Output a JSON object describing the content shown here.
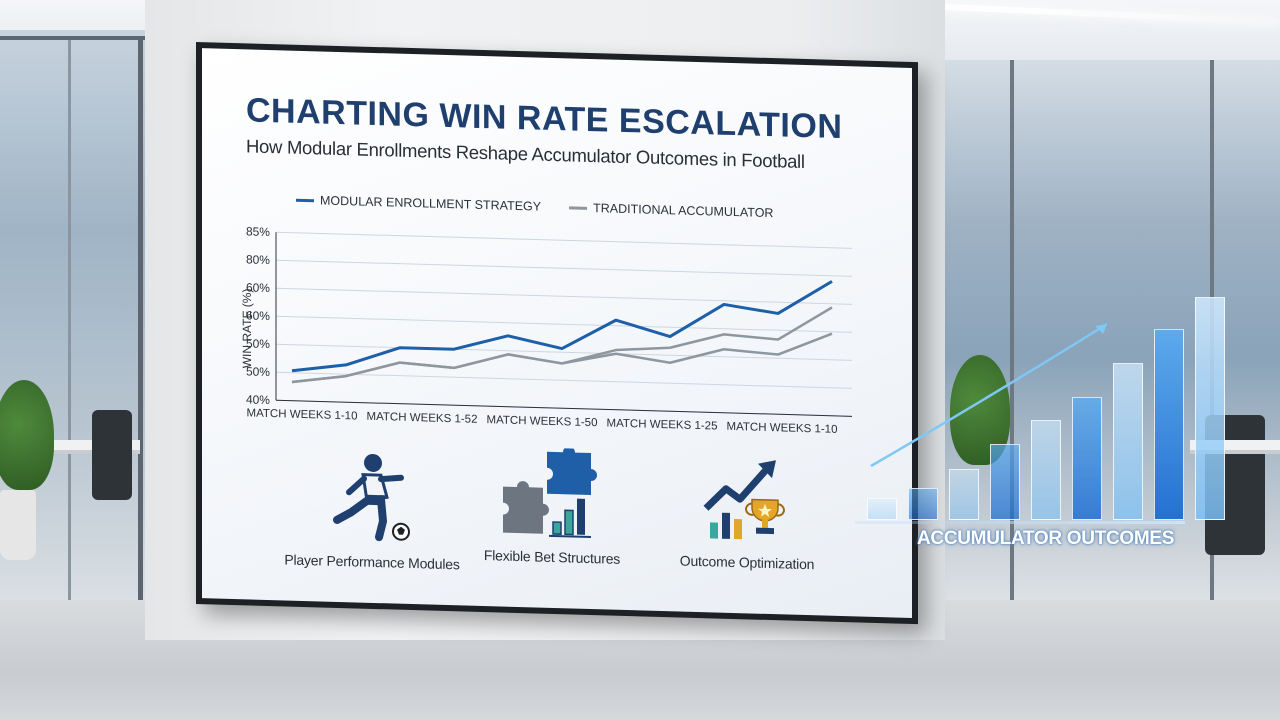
{
  "screen": {
    "title": "CHARTING WIN RATE ESCALATION",
    "subtitle": "How Modular Enrollments Reshape Accumulator Outcomes in Football"
  },
  "chart_data": {
    "type": "line",
    "title": "CHARTING WIN RATE ESCALATION",
    "subtitle": "How Modular Enrollments Reshape Accumulator Outcomes in Football",
    "ylabel": "WIN RATE (%)",
    "xlabel": "",
    "y_ticks": [
      "85%",
      "80%",
      "60%",
      "60%",
      "50%",
      "50%",
      "40%"
    ],
    "x_ticks": [
      "MATCH WEEKS 1-10",
      "MATCH WEEKS 1-52",
      "MATCH WEEKS 1-50",
      "MATCH WEEKS 1-25",
      "MATCH WEEKS 1-10"
    ],
    "ylim": [
      40,
      85
    ],
    "grid": true,
    "legend_position": "top",
    "series": [
      {
        "name": "MODULAR ENROLLMENT STRATEGY",
        "color": "#1d5fa8",
        "values": [
          48,
          50,
          55,
          55,
          59,
          56,
          64,
          60,
          69,
          67,
          76
        ]
      },
      {
        "name": "TRADITIONAL ACCUMULATOR",
        "color": "#8e979f",
        "values": [
          45,
          47,
          51,
          50,
          54,
          52,
          56,
          57,
          61,
          60,
          69
        ]
      },
      {
        "name": "",
        "color": "#8e979f",
        "values": [
          45,
          47,
          51,
          50,
          54,
          52,
          55,
          53,
          57,
          56,
          62
        ]
      }
    ]
  },
  "feature_icons": [
    {
      "label": "Player Performance Modules",
      "icon": "soccer-player-icon"
    },
    {
      "label": "Flexible Bet Structures",
      "icon": "puzzle-chart-icon"
    },
    {
      "label": "Outcome Optimization",
      "icon": "trophy-growth-icon"
    }
  ],
  "holo_chart": {
    "label": "ACCUMULATOR OUTCOMES",
    "bar_levels": [
      0.09,
      0.13,
      0.21,
      0.31,
      0.41,
      0.5,
      0.64,
      0.78,
      0.91
    ],
    "trend": "rising",
    "accent": "#4aa3f0"
  }
}
